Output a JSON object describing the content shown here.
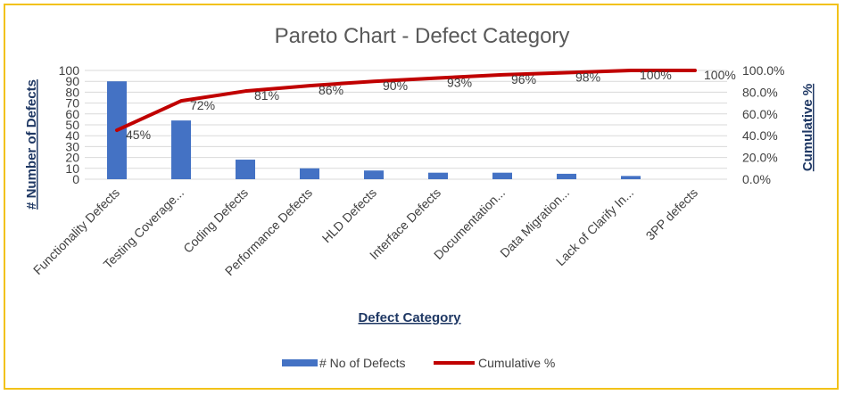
{
  "chart_data": {
    "type": "bar",
    "title": "Pareto Chart - Defect Category",
    "xlabel": "Defect Category",
    "ylabel": "# Number of Defects",
    "y2label": "Cumulative %",
    "categories": [
      "Functionality Defects",
      "Testing Coverage...",
      "Coding Defects",
      "Performance Defects",
      "HLD Defects",
      "Interface Defects",
      "Documentation...",
      "Data Migration...",
      "Lack of Clarify In...",
      "3PP defects"
    ],
    "series": [
      {
        "name": "# No of Defects",
        "type": "bar",
        "axis": "left",
        "color": "#4472c4",
        "values": [
          90,
          54,
          18,
          10,
          8,
          6,
          6,
          5,
          3,
          0
        ]
      },
      {
        "name": "Cumulative %",
        "type": "line",
        "axis": "right",
        "color": "#c00000",
        "values": [
          45,
          72,
          81,
          86,
          90,
          93,
          96,
          98,
          100,
          100
        ],
        "labels": [
          "45%",
          "72%",
          "81%",
          "86%",
          "90%",
          "93%",
          "96%",
          "98%",
          "100%",
          "100%"
        ]
      }
    ],
    "ylim": [
      0,
      100
    ],
    "yticks": [
      "0",
      "10",
      "20",
      "30",
      "40",
      "50",
      "60",
      "70",
      "80",
      "90",
      "100"
    ],
    "y2lim": [
      0,
      100
    ],
    "y2ticks": [
      "0.0%",
      "20.0%",
      "40.0%",
      "60.0%",
      "80.0%",
      "100.0%"
    ],
    "grid": true,
    "legend_position": "bottom"
  }
}
